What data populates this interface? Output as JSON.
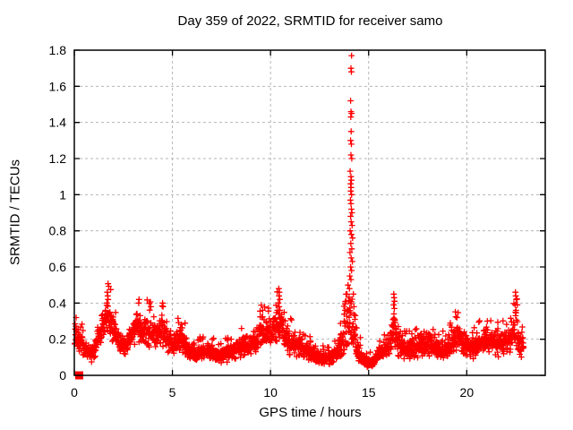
{
  "chart_data": {
    "type": "scatter",
    "title": "Day 359 of 2022, SRMTID for receiver samo",
    "xlabel": "GPS time / hours",
    "ylabel": "SRMTID / TECUs",
    "xlim": [
      0,
      24
    ],
    "ylim": [
      0,
      1.8
    ],
    "grid": true,
    "legend": "none",
    "marker": "plus",
    "marker_color": "#ff0000",
    "grid_color": "#b5b5b5",
    "border_color": "#000000",
    "x_ticks": [
      {
        "v": 0,
        "label": "0"
      },
      {
        "v": 5,
        "label": "5"
      },
      {
        "v": 10,
        "label": "10"
      },
      {
        "v": 15,
        "label": "15"
      },
      {
        "v": 20,
        "label": "20"
      }
    ],
    "y_ticks": [
      {
        "v": 0,
        "label": "0"
      },
      {
        "v": 0.2,
        "label": "0.2"
      },
      {
        "v": 0.4,
        "label": "0.4"
      },
      {
        "v": 0.6,
        "label": "0.6"
      },
      {
        "v": 0.8,
        "label": "0.8"
      },
      {
        "v": 1,
        "label": "1"
      },
      {
        "v": 1.2,
        "label": "1.2"
      },
      {
        "v": 1.4,
        "label": "1.4"
      },
      {
        "v": 1.6,
        "label": "1.6"
      },
      {
        "v": 1.8,
        "label": "1.8"
      }
    ],
    "sample_step_hours": 0.01,
    "data_start_hour": 0.02,
    "data_end_hour": 22.9,
    "band_profile": [
      [
        0.0,
        0.15,
        0.3
      ],
      [
        0.3,
        0.12,
        0.26
      ],
      [
        0.6,
        0.08,
        0.19
      ],
      [
        0.9,
        0.07,
        0.17
      ],
      [
        1.2,
        0.12,
        0.28
      ],
      [
        1.5,
        0.18,
        0.38
      ],
      [
        1.7,
        0.22,
        0.44
      ],
      [
        2.0,
        0.17,
        0.35
      ],
      [
        2.3,
        0.12,
        0.26
      ],
      [
        2.6,
        0.1,
        0.21
      ],
      [
        2.9,
        0.14,
        0.29
      ],
      [
        3.2,
        0.17,
        0.4
      ],
      [
        3.5,
        0.15,
        0.33
      ],
      [
        3.8,
        0.15,
        0.35
      ],
      [
        4.1,
        0.12,
        0.28
      ],
      [
        4.4,
        0.15,
        0.38
      ],
      [
        4.7,
        0.12,
        0.28
      ],
      [
        5.0,
        0.1,
        0.22
      ],
      [
        5.4,
        0.12,
        0.3
      ],
      [
        5.8,
        0.08,
        0.2
      ],
      [
        6.2,
        0.07,
        0.17
      ],
      [
        6.6,
        0.08,
        0.18
      ],
      [
        7.0,
        0.08,
        0.18
      ],
      [
        7.4,
        0.06,
        0.16
      ],
      [
        7.8,
        0.07,
        0.17
      ],
      [
        8.2,
        0.08,
        0.2
      ],
      [
        8.6,
        0.1,
        0.22
      ],
      [
        9.0,
        0.1,
        0.24
      ],
      [
        9.4,
        0.13,
        0.3
      ],
      [
        9.7,
        0.15,
        0.34
      ],
      [
        10.0,
        0.15,
        0.32
      ],
      [
        10.45,
        0.16,
        0.4
      ],
      [
        10.7,
        0.12,
        0.3
      ],
      [
        11.0,
        0.1,
        0.26
      ],
      [
        11.4,
        0.1,
        0.22
      ],
      [
        11.8,
        0.08,
        0.2
      ],
      [
        12.2,
        0.06,
        0.16
      ],
      [
        12.6,
        0.05,
        0.14
      ],
      [
        13.0,
        0.05,
        0.13
      ],
      [
        13.4,
        0.08,
        0.18
      ],
      [
        13.7,
        0.1,
        0.28
      ],
      [
        13.9,
        0.14,
        0.42
      ],
      [
        14.05,
        0.18,
        0.48
      ],
      [
        14.2,
        0.14,
        0.38
      ],
      [
        14.4,
        0.08,
        0.24
      ],
      [
        14.7,
        0.05,
        0.12
      ],
      [
        15.0,
        0.04,
        0.1
      ],
      [
        15.3,
        0.05,
        0.12
      ],
      [
        15.6,
        0.08,
        0.18
      ],
      [
        15.9,
        0.1,
        0.22
      ],
      [
        16.15,
        0.12,
        0.28
      ],
      [
        16.3,
        0.14,
        0.4
      ],
      [
        16.5,
        0.1,
        0.25
      ],
      [
        16.8,
        0.08,
        0.2
      ],
      [
        17.2,
        0.08,
        0.2
      ],
      [
        17.6,
        0.1,
        0.24
      ],
      [
        18.0,
        0.1,
        0.26
      ],
      [
        18.4,
        0.1,
        0.22
      ],
      [
        18.8,
        0.08,
        0.2
      ],
      [
        19.2,
        0.1,
        0.24
      ],
      [
        19.5,
        0.12,
        0.3
      ],
      [
        19.8,
        0.1,
        0.26
      ],
      [
        20.2,
        0.08,
        0.2
      ],
      [
        20.6,
        0.1,
        0.24
      ],
      [
        21.0,
        0.12,
        0.28
      ],
      [
        21.4,
        0.1,
        0.24
      ],
      [
        21.8,
        0.1,
        0.26
      ],
      [
        22.2,
        0.12,
        0.28
      ],
      [
        22.5,
        0.16,
        0.42
      ],
      [
        22.7,
        0.1,
        0.26
      ],
      [
        22.9,
        0.08,
        0.2
      ]
    ],
    "spike_points": [
      [
        13.75,
        0.3
      ],
      [
        13.8,
        0.36
      ],
      [
        13.85,
        0.41
      ],
      [
        13.9,
        0.45
      ],
      [
        13.95,
        0.5
      ],
      [
        14.02,
        0.48
      ],
      [
        14.04,
        0.55
      ],
      [
        14.1,
        0.53
      ],
      [
        14.13,
        0.58
      ],
      [
        14.08,
        0.6
      ],
      [
        14.17,
        0.63
      ],
      [
        14.11,
        0.65
      ],
      [
        14.05,
        0.68
      ],
      [
        14.14,
        0.7
      ],
      [
        14.09,
        0.73
      ],
      [
        14.18,
        0.76
      ],
      [
        14.12,
        0.78
      ],
      [
        14.06,
        0.8
      ],
      [
        14.16,
        0.83
      ],
      [
        14.11,
        0.85
      ],
      [
        14.08,
        0.88
      ],
      [
        14.15,
        0.9
      ],
      [
        14.12,
        0.92
      ],
      [
        14.1,
        0.95
      ],
      [
        14.07,
        0.97
      ],
      [
        14.13,
        1.0
      ],
      [
        14.09,
        1.02
      ],
      [
        14.11,
        1.04
      ],
      [
        14.08,
        1.06
      ],
      [
        14.12,
        1.08
      ],
      [
        14.1,
        1.1
      ],
      [
        14.06,
        1.13
      ],
      [
        14.14,
        1.2
      ],
      [
        14.1,
        1.22
      ],
      [
        14.12,
        1.28
      ],
      [
        14.08,
        1.3
      ],
      [
        14.11,
        1.35
      ],
      [
        14.09,
        1.43
      ],
      [
        14.13,
        1.45
      ],
      [
        14.1,
        1.46
      ],
      [
        14.08,
        1.52
      ],
      [
        14.12,
        1.68
      ],
      [
        14.1,
        1.7
      ],
      [
        14.13,
        1.77
      ],
      [
        14.22,
        0.45
      ],
      [
        14.25,
        0.38
      ],
      [
        14.3,
        0.31
      ],
      [
        10.42,
        0.48
      ],
      [
        10.45,
        0.46
      ],
      [
        10.43,
        0.44
      ],
      [
        10.47,
        0.42
      ],
      [
        10.4,
        0.4
      ],
      [
        10.44,
        0.38
      ],
      [
        10.48,
        0.36
      ],
      [
        10.41,
        0.34
      ],
      [
        10.46,
        0.32
      ],
      [
        16.28,
        0.45
      ],
      [
        16.3,
        0.43
      ],
      [
        16.32,
        0.41
      ],
      [
        16.27,
        0.39
      ],
      [
        16.31,
        0.37
      ],
      [
        16.29,
        0.34
      ],
      [
        16.33,
        0.31
      ],
      [
        22.48,
        0.46
      ],
      [
        22.5,
        0.44
      ],
      [
        22.52,
        0.42
      ],
      [
        22.47,
        0.39
      ],
      [
        22.51,
        0.36
      ],
      [
        22.49,
        0.33
      ],
      [
        1.68,
        0.46
      ],
      [
        1.7,
        0.44
      ],
      [
        1.72,
        0.42
      ],
      [
        1.66,
        0.4
      ],
      [
        3.3,
        0.42
      ],
      [
        3.28,
        0.4
      ],
      [
        3.9,
        0.38
      ],
      [
        4.5,
        0.4
      ],
      [
        4.52,
        0.38
      ],
      [
        9.6,
        0.36
      ],
      [
        19.5,
        0.32
      ],
      [
        21.05,
        0.3
      ]
    ],
    "square_marker": {
      "x": 0.25,
      "y": 0.0,
      "color": "#ff0000"
    }
  }
}
